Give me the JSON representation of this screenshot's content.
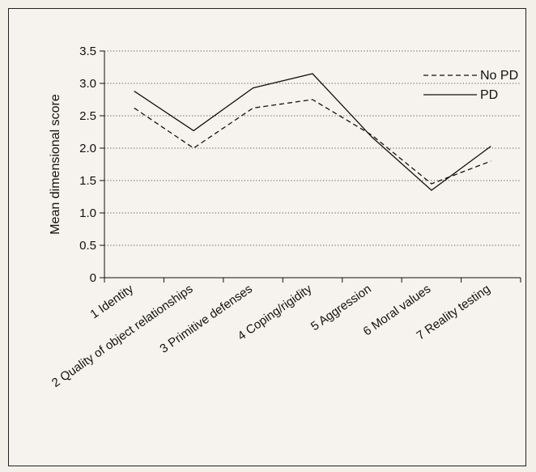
{
  "chart_data": {
    "type": "line",
    "title": "",
    "xlabel": "",
    "ylabel": "Mean dimensional score",
    "ylim": [
      0,
      3.5
    ],
    "yticks": [
      "0",
      "0.5",
      "1.0",
      "1.5",
      "2.0",
      "2.5",
      "3.0",
      "3.5"
    ],
    "categories": [
      "1 Identity",
      "2 Quality of object relationships",
      "3 Primitive defenses",
      "4 Coping/rigidity",
      "5 Aggression",
      "6 Moral values",
      "7 Reality testing"
    ],
    "series": [
      {
        "name": "No PD",
        "style": "dashed",
        "values": [
          2.62,
          2.0,
          2.62,
          2.75,
          2.2,
          1.45,
          1.8
        ]
      },
      {
        "name": "PD",
        "style": "solid",
        "values": [
          2.88,
          2.27,
          2.93,
          3.15,
          2.17,
          1.35,
          2.03
        ]
      }
    ],
    "grid": "horizontal dotted",
    "legend_position": "top-right",
    "colors": {
      "line": "#111111",
      "grid": "#555555",
      "background": "#f6f3ee"
    }
  }
}
